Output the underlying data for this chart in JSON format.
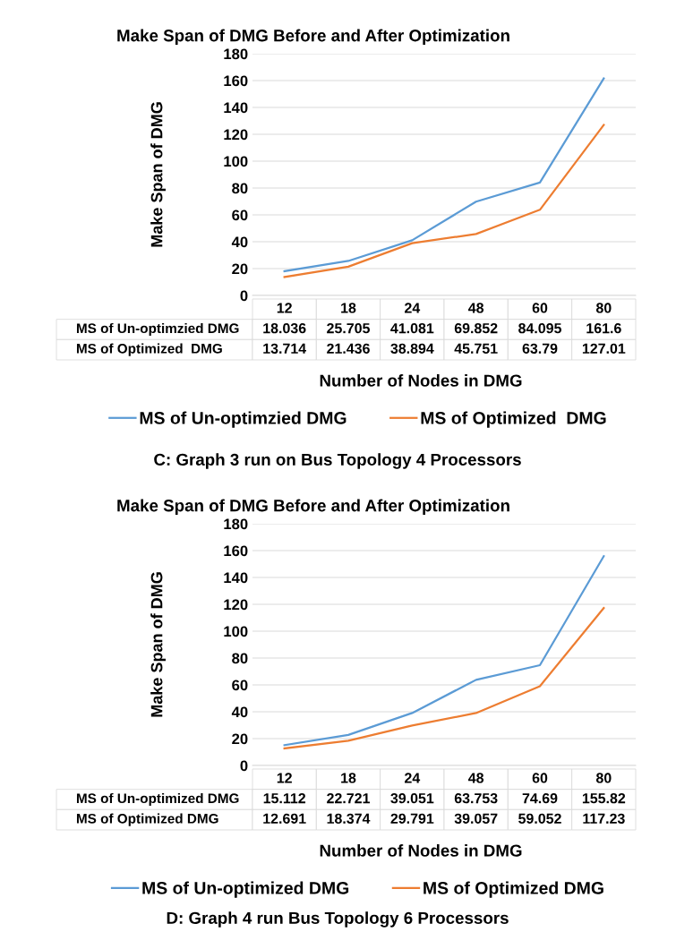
{
  "chart_data": [
    {
      "type": "line",
      "title": "Make Span of DMG Before and After Optimization",
      "ylabel": "Make Span of DMG",
      "xlabel": "Number of Nodes in DMG",
      "categories": [
        "12",
        "18",
        "24",
        "48",
        "60",
        "80"
      ],
      "series": [
        {
          "name": "MS of Un-optimzied DMG",
          "color": "#5b9bd5",
          "values": [
            18.036,
            25.705,
            41.081,
            69.852,
            84.095,
            161.6
          ]
        },
        {
          "name": "MS of Optimized  DMG",
          "color": "#ed7d31",
          "values": [
            13.714,
            21.436,
            38.894,
            45.751,
            63.79,
            127.01
          ]
        }
      ],
      "ylim": [
        0,
        180
      ],
      "yticks": [
        0,
        20,
        40,
        60,
        80,
        100,
        120,
        140,
        160,
        180
      ],
      "grid": "y",
      "legend": "bottom",
      "data_labels": true,
      "tick_labels": "y",
      "marker": "none",
      "line_style": "solid",
      "annotations": [
        "C: Graph 3 run on Bus Topology 4 Processors"
      ]
    },
    {
      "type": "line",
      "title": "Make Span of DMG Before and After Optimization",
      "ylabel": "Make Span of DMG",
      "xlabel": "Number of Nodes in DMG",
      "categories": [
        "12",
        "18",
        "24",
        "48",
        "60",
        "80"
      ],
      "series": [
        {
          "name": "MS of Un-optimized DMG",
          "color": "#5b9bd5",
          "values": [
            15.112,
            22.721,
            39.051,
            63.753,
            74.69,
            155.82
          ]
        },
        {
          "name": "MS of Optimized DMG",
          "color": "#ed7d31",
          "values": [
            12.691,
            18.374,
            29.791,
            39.057,
            59.052,
            117.23
          ]
        }
      ],
      "ylim": [
        0,
        180
      ],
      "yticks": [
        0,
        20,
        40,
        60,
        80,
        100,
        120,
        140,
        160,
        180
      ],
      "grid": "y",
      "legend": "bottom",
      "data_labels": true,
      "tick_labels": "y",
      "marker": "none",
      "line_style": "solid",
      "annotations": [
        "D: Graph 4 run Bus Topology 6 Processors"
      ]
    }
  ]
}
